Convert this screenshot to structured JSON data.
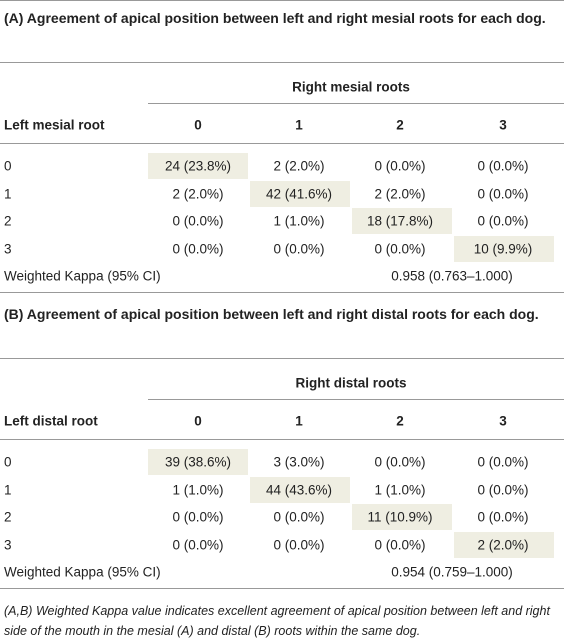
{
  "sections": [
    {
      "title": "(A) Agreement of apical position between left and right mesial roots for each dog.",
      "group_label": "Right mesial roots",
      "row_header": "Left mesial root",
      "columns": [
        "0",
        "1",
        "2",
        "3"
      ],
      "rows": [
        [
          "0",
          "24 (23.8%)",
          "2 (2.0%)",
          "0 (0.0%)",
          "0 (0.0%)"
        ],
        [
          "1",
          "2 (2.0%)",
          "42 (41.6%)",
          "2 (2.0%)",
          "0 (0.0%)"
        ],
        [
          "2",
          "0 (0.0%)",
          "1 (1.0%)",
          "18 (17.8%)",
          "0 (0.0%)"
        ],
        [
          "3",
          "0 (0.0%)",
          "0 (0.0%)",
          "0 (0.0%)",
          "10 (9.9%)"
        ]
      ],
      "kappa_label": "Weighted Kappa (95% CI)",
      "kappa_value": "0.958 (0.763–1.000)"
    },
    {
      "title": "(B) Agreement of apical position between left and right distal roots for each dog.",
      "group_label": "Right distal roots",
      "row_header": "Left distal root",
      "columns": [
        "0",
        "1",
        "2",
        "3"
      ],
      "rows": [
        [
          "0",
          "39 (38.6%)",
          "3 (3.0%)",
          "0 (0.0%)",
          "0 (0.0%)"
        ],
        [
          "1",
          "1 (1.0%)",
          "44 (43.6%)",
          "1 (1.0%)",
          "0 (0.0%)"
        ],
        [
          "2",
          "0 (0.0%)",
          "0 (0.0%)",
          "11 (10.9%)",
          "0 (0.0%)"
        ],
        [
          "3",
          "0 (0.0%)",
          "0 (0.0%)",
          "0 (0.0%)",
          "2 (2.0%)"
        ]
      ],
      "kappa_label": "Weighted Kappa (95% CI)",
      "kappa_value": "0.954 (0.759–1.000)"
    }
  ],
  "footnote": "(A,B) Weighted Kappa value indicates excellent agreement of apical position between left and right side of the mouth in the mesial (A) and distal (B) roots within the same dog."
}
